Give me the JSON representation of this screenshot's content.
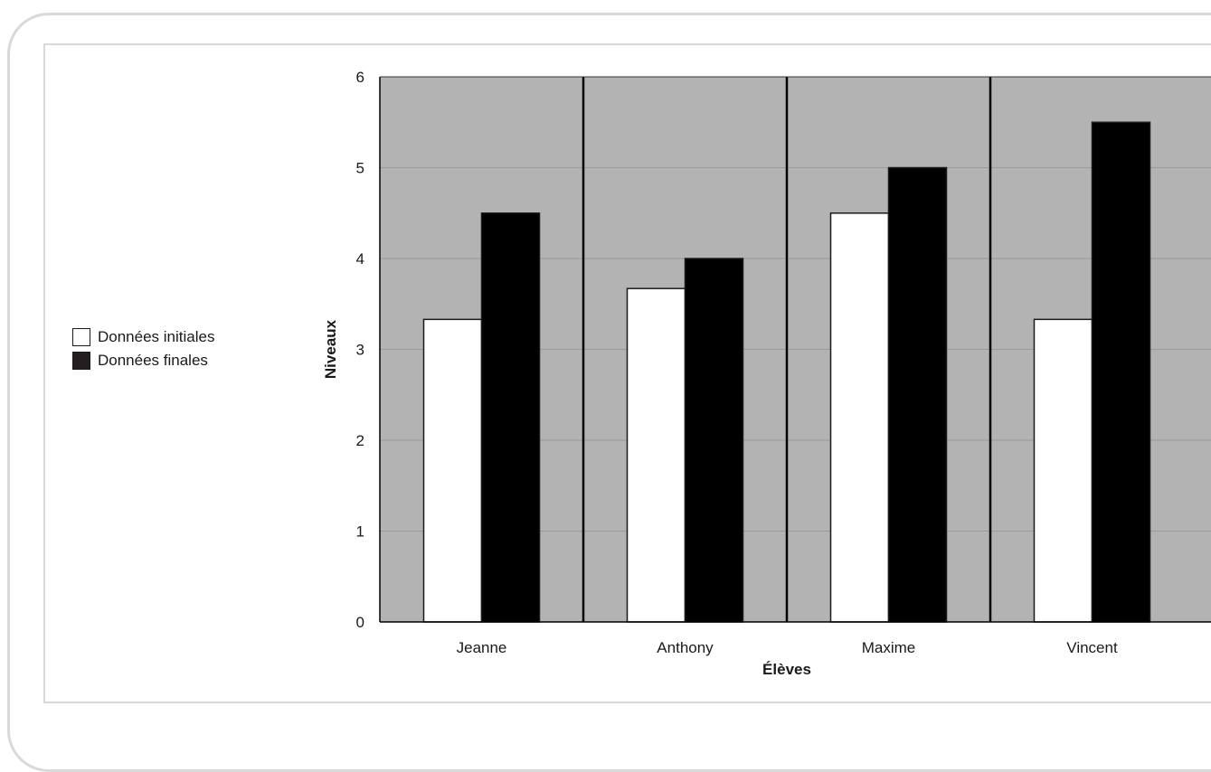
{
  "chart_data": {
    "type": "bar",
    "categories": [
      "Jeanne",
      "Anthony",
      "Maxime",
      "Vincent"
    ],
    "series": [
      {
        "name": "Données initiales",
        "values": [
          3.33,
          3.67,
          4.5,
          3.33
        ],
        "color": "#ffffff"
      },
      {
        "name": "Données finales",
        "values": [
          4.5,
          4.0,
          5.0,
          5.5
        ],
        "color": "#000000"
      }
    ],
    "xlabel": "Élèves",
    "ylabel": "Niveaux",
    "ylim": [
      0,
      6
    ],
    "yticks": [
      "0",
      "1",
      "2",
      "3",
      "4",
      "5",
      "6"
    ],
    "grid": true,
    "plot_background": "#b3b3b3",
    "legend_position": "left"
  }
}
